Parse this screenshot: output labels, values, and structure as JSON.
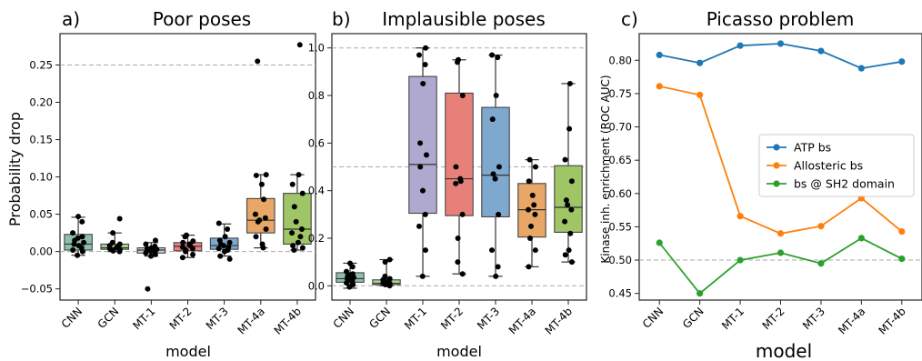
{
  "chart_data": [
    {
      "type": "box",
      "panel_label": "a)",
      "title": "Poor poses",
      "xlabel": "model",
      "ylabel": "Probability drop",
      "ylim": [
        -0.065,
        0.292
      ],
      "yticks": [
        -0.05,
        0.0,
        0.05,
        0.1,
        0.15,
        0.2,
        0.25
      ],
      "ytick_labels": [
        "−0.05",
        "0.00",
        "0.05",
        "0.10",
        "0.15",
        "0.20",
        "0.25"
      ],
      "reference_lines": [
        0.0,
        0.25
      ],
      "categories": [
        "CNN",
        "GCN",
        "MT-1",
        "MT-2",
        "MT-3",
        "MT-4a",
        "MT-4b"
      ],
      "colors": [
        "#8fbfa9",
        "#a9d18e",
        "#cfcfcf",
        "#f08080",
        "#7fa8cf",
        "#e8a667",
        "#9fc566"
      ],
      "boxes": [
        {
          "q1": 0.002,
          "median": 0.01,
          "q3": 0.023,
          "whislo": -0.005,
          "whishi": 0.046
        },
        {
          "q1": 0.003,
          "median": 0.005,
          "q3": 0.01,
          "whislo": 0.0,
          "whishi": 0.025
        },
        {
          "q1": -0.002,
          "median": 0.002,
          "q3": 0.005,
          "whislo": -0.006,
          "whishi": 0.012
        },
        {
          "q1": 0.001,
          "median": 0.007,
          "q3": 0.012,
          "whislo": -0.008,
          "whishi": 0.022
        },
        {
          "q1": 0.003,
          "median": 0.008,
          "q3": 0.018,
          "whislo": -0.006,
          "whishi": 0.037
        },
        {
          "q1": 0.025,
          "median": 0.042,
          "q3": 0.071,
          "whislo": 0.005,
          "whishi": 0.103
        },
        {
          "q1": 0.01,
          "median": 0.03,
          "q3": 0.078,
          "whislo": 0.002,
          "whishi": 0.103
        }
      ],
      "points": [
        [
          0.047,
          0.04,
          0.025,
          0.02,
          0.018,
          0.015,
          0.012,
          0.01,
          0.008,
          0.005,
          0.002,
          0.0,
          -0.005
        ],
        [
          0.044,
          0.025,
          0.012,
          0.01,
          0.008,
          0.006,
          0.005,
          0.004,
          0.003,
          0.002,
          0.001,
          0.0
        ],
        [
          0.015,
          0.01,
          0.007,
          0.005,
          0.004,
          0.003,
          0.002,
          0.001,
          0.0,
          -0.002,
          -0.004,
          -0.006,
          -0.05
        ],
        [
          0.022,
          0.02,
          0.014,
          0.012,
          0.01,
          0.008,
          0.006,
          0.004,
          0.002,
          0.0,
          -0.004,
          -0.008
        ],
        [
          0.038,
          0.03,
          0.02,
          0.015,
          0.012,
          0.01,
          0.008,
          0.006,
          0.004,
          0.002,
          0.0,
          -0.006,
          -0.01
        ],
        [
          0.255,
          0.103,
          0.102,
          0.09,
          0.07,
          0.05,
          0.045,
          0.042,
          0.04,
          0.03,
          0.02,
          0.01,
          0.005
        ],
        [
          0.277,
          0.103,
          0.09,
          0.078,
          0.06,
          0.04,
          0.03,
          0.025,
          0.02,
          0.012,
          0.008,
          0.005,
          0.002
        ]
      ]
    },
    {
      "type": "box",
      "panel_label": "b)",
      "title": "Implausible poses",
      "xlabel": "model",
      "ylabel": "",
      "ylim": [
        -0.06,
        1.06
      ],
      "yticks": [
        0.0,
        0.2,
        0.4,
        0.6,
        0.8,
        1.0
      ],
      "ytick_labels": [
        "0.0",
        "0.2",
        "0.4",
        "0.6",
        "0.8",
        "1.0"
      ],
      "reference_lines": [
        0.0,
        0.5,
        1.0
      ],
      "categories": [
        "CNN",
        "GCN",
        "MT-1",
        "MT-2",
        "MT-3",
        "MT-4a",
        "MT-4b"
      ],
      "colors": [
        "#8fbfa9",
        "#a9d18e",
        "#b0a9cf",
        "#e8807a",
        "#7fa8cf",
        "#e8a667",
        "#9fc566"
      ],
      "boxes": [
        {
          "q1": 0.015,
          "median": 0.03,
          "q3": 0.055,
          "whislo": -0.01,
          "whishi": 0.095
        },
        {
          "q1": 0.005,
          "median": 0.01,
          "q3": 0.025,
          "whislo": 0.0,
          "whishi": 0.11
        },
        {
          "q1": 0.305,
          "median": 0.51,
          "q3": 0.88,
          "whislo": 0.04,
          "whishi": 1.0
        },
        {
          "q1": 0.295,
          "median": 0.45,
          "q3": 0.81,
          "whislo": 0.05,
          "whishi": 0.95
        },
        {
          "q1": 0.29,
          "median": 0.465,
          "q3": 0.75,
          "whislo": 0.04,
          "whishi": 0.97
        },
        {
          "q1": 0.205,
          "median": 0.32,
          "q3": 0.43,
          "whislo": 0.08,
          "whishi": 0.53
        },
        {
          "q1": 0.225,
          "median": 0.33,
          "q3": 0.505,
          "whislo": 0.1,
          "whishi": 0.85
        }
      ],
      "points": [
        [
          0.095,
          0.08,
          0.06,
          0.05,
          0.045,
          0.04,
          0.035,
          0.03,
          0.025,
          0.02,
          0.012,
          0.005,
          -0.005
        ],
        [
          0.11,
          0.1,
          0.04,
          0.03,
          0.025,
          0.02,
          0.015,
          0.012,
          0.01,
          0.008,
          0.005,
          0.0
        ],
        [
          1.0,
          0.97,
          0.93,
          0.85,
          0.6,
          0.55,
          0.5,
          0.4,
          0.3,
          0.25,
          0.15,
          0.04
        ],
        [
          0.95,
          0.94,
          0.8,
          0.5,
          0.45,
          0.44,
          0.43,
          0.3,
          0.2,
          0.1,
          0.05
        ],
        [
          0.97,
          0.96,
          0.8,
          0.7,
          0.5,
          0.47,
          0.45,
          0.3,
          0.15,
          0.08,
          0.04
        ],
        [
          0.53,
          0.5,
          0.44,
          0.38,
          0.34,
          0.32,
          0.3,
          0.25,
          0.2,
          0.15,
          0.08
        ],
        [
          0.85,
          0.66,
          0.53,
          0.44,
          0.36,
          0.34,
          0.32,
          0.27,
          0.22,
          0.15,
          0.13,
          0.1
        ]
      ]
    },
    {
      "type": "line",
      "panel_label": "c)",
      "title": "Picasso problem",
      "xlabel": "model",
      "ylabel": "Kinase inh. enrichment (ROC AUC)",
      "ylim": [
        0.44,
        0.84
      ],
      "yticks": [
        0.45,
        0.5,
        0.55,
        0.6,
        0.65,
        0.7,
        0.75,
        0.8
      ],
      "ytick_labels": [
        "0.45",
        "0.50",
        "0.55",
        "0.60",
        "0.65",
        "0.70",
        "0.75",
        "0.80"
      ],
      "reference_lines": [
        0.5
      ],
      "categories": [
        "CNN",
        "GCN",
        "MT-1",
        "MT-2",
        "MT-3",
        "MT-4a",
        "MT-4b"
      ],
      "legend_position": "center-right",
      "series": [
        {
          "name": "ATP bs",
          "color": "#1f77b4",
          "values": [
            0.808,
            0.796,
            0.822,
            0.825,
            0.814,
            0.788,
            0.798
          ]
        },
        {
          "name": "Allosteric bs",
          "color": "#ff7f0e",
          "values": [
            0.761,
            0.748,
            0.566,
            0.54,
            0.551,
            0.593,
            0.543
          ]
        },
        {
          "name": "bs @ SH2 domain",
          "color": "#2ca02c",
          "values": [
            0.526,
            0.45,
            0.5,
            0.511,
            0.495,
            0.533,
            0.502
          ]
        }
      ]
    }
  ]
}
